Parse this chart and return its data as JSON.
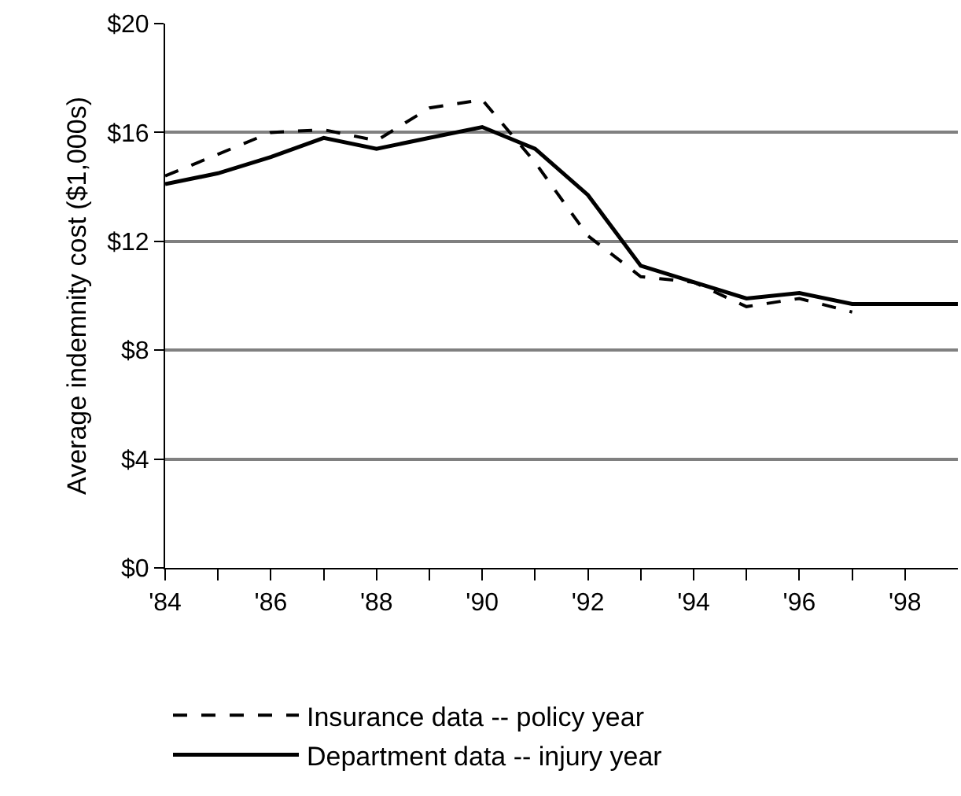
{
  "chart_data": {
    "type": "line",
    "ylabel": "Average indemnity cost ($1,000s)",
    "x": [
      1984,
      1985,
      1986,
      1987,
      1988,
      1989,
      1990,
      1991,
      1992,
      1993,
      1994,
      1995,
      1996,
      1997,
      1998,
      1999
    ],
    "series": [
      {
        "name": "Insurance data -- policy year",
        "color": "#000000",
        "line_style": "dashed",
        "values": [
          14.4,
          15.2,
          16.0,
          16.1,
          15.7,
          16.9,
          17.2,
          14.9,
          12.2,
          10.7,
          10.5,
          9.6,
          9.9,
          9.4,
          null,
          null
        ]
      },
      {
        "name": "Department data -- injury year",
        "color": "#000000",
        "line_style": "solid",
        "values": [
          14.1,
          14.5,
          15.1,
          15.8,
          15.4,
          15.8,
          16.2,
          15.4,
          13.7,
          11.1,
          10.5,
          9.9,
          10.1,
          9.7,
          9.7,
          9.7
        ]
      }
    ],
    "xlim": [
      1984,
      1999
    ],
    "xticks": [
      {
        "value": 1984,
        "label": "'84"
      },
      {
        "value": 1985,
        "label": null
      },
      {
        "value": 1986,
        "label": "'86"
      },
      {
        "value": 1987,
        "label": null
      },
      {
        "value": 1988,
        "label": "'88"
      },
      {
        "value": 1989,
        "label": null
      },
      {
        "value": 1990,
        "label": "'90"
      },
      {
        "value": 1991,
        "label": null
      },
      {
        "value": 1992,
        "label": "'92"
      },
      {
        "value": 1993,
        "label": null
      },
      {
        "value": 1994,
        "label": "'94"
      },
      {
        "value": 1995,
        "label": null
      },
      {
        "value": 1996,
        "label": "'96"
      },
      {
        "value": 1997,
        "label": null
      },
      {
        "value": 1998,
        "label": "'98"
      }
    ],
    "ylim": [
      0,
      20
    ],
    "yticks": [
      {
        "value": 0,
        "label": "$0"
      },
      {
        "value": 4,
        "label": "$4"
      },
      {
        "value": 8,
        "label": "$8"
      },
      {
        "value": 12,
        "label": "$12"
      },
      {
        "value": 16,
        "label": "$16"
      },
      {
        "value": 20,
        "label": "$20"
      }
    ],
    "grid": "y",
    "legend": "bottom",
    "marker": "none"
  }
}
